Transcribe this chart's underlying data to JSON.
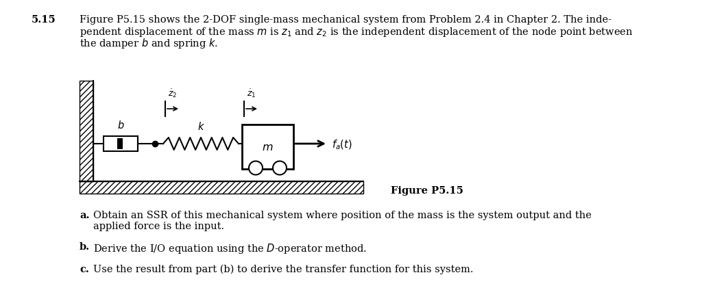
{
  "problem_num": "5.15",
  "line1": "Figure P5.15 shows the 2-DOF single-mass mechanical system from Problem 2.4 in Chapter 2. The inde-",
  "line2": "pendent displacement of the mass $m$ is $z_1$ and $z_2$ is the independent displacement of the node point between",
  "line3": "the damper $b$ and spring $k$.",
  "figure_caption": "Figure P5.15",
  "label_a_bold": "a.",
  "label_b_bold": "b.",
  "label_c_bold": "c.",
  "text_a1": "Obtain an SSR of this mechanical system where position of the mass is the system output and the",
  "text_a2": "applied force is the input.",
  "text_b": "Derive the I/O equation using the $D$-operator method.",
  "text_c": "Use the result from part (b) to derive the transfer function for this system.",
  "bg_color": "#ffffff"
}
